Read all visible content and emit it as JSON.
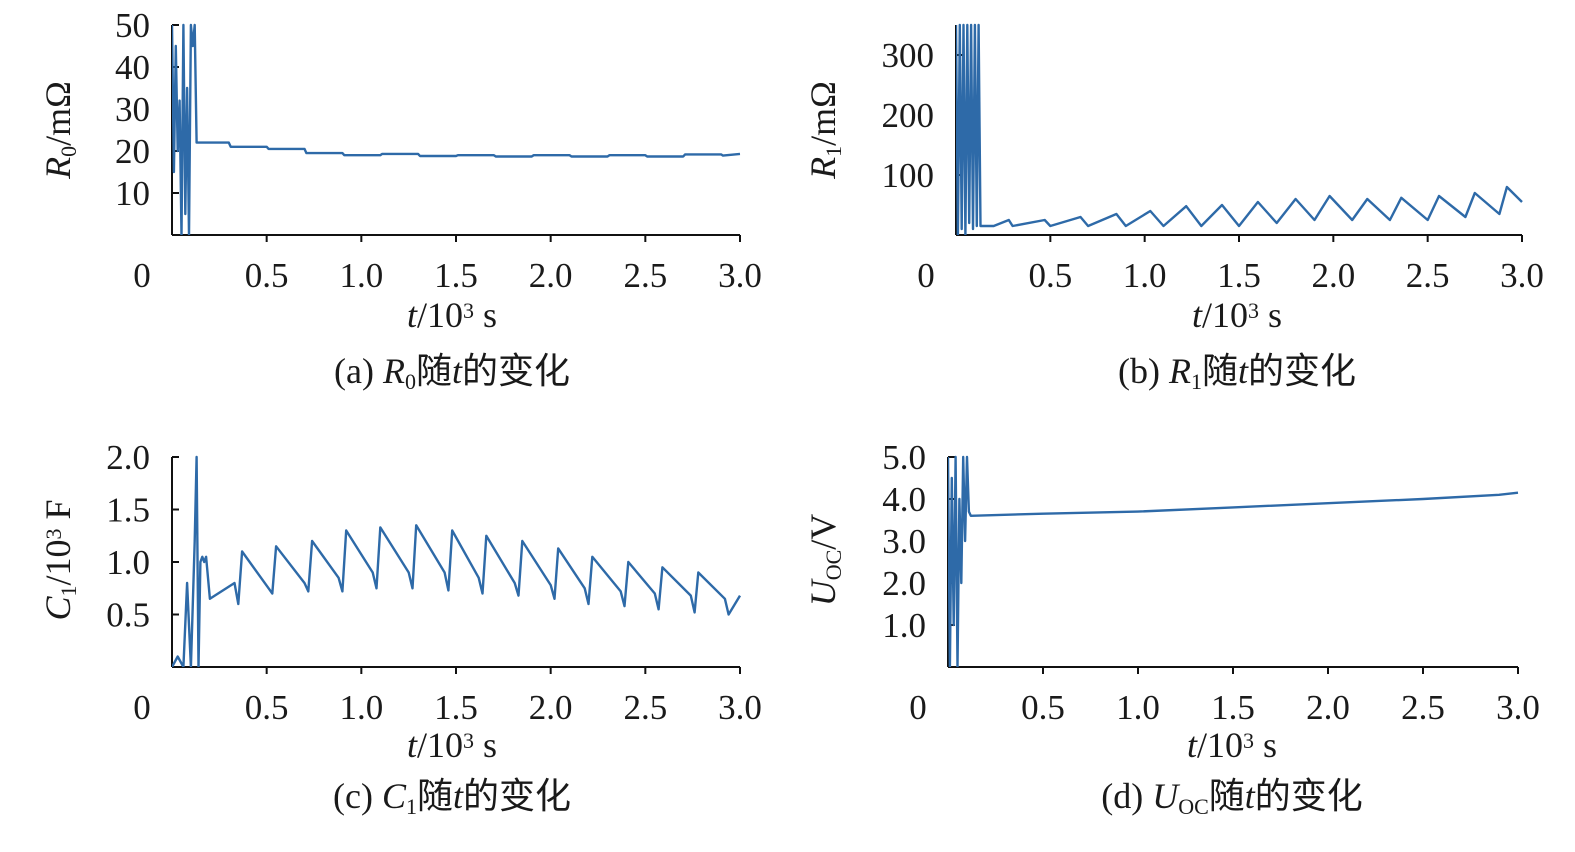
{
  "colors": {
    "series": "#2e6aa8",
    "axis": "#111111",
    "text": "#1a1a1a"
  },
  "chart_data": [
    {
      "type": "line",
      "panel": "a",
      "caption": "(a) R0随t的变化",
      "caption_parts": [
        "(a) ",
        "R",
        "0",
        "随",
        "t",
        "的变化"
      ],
      "ylabel_parts": [
        "R",
        "0",
        "/mΩ"
      ],
      "xlabel_parts": [
        "t",
        "/10",
        "3",
        " s"
      ],
      "xlim": [
        0,
        3.0
      ],
      "ylim": [
        0,
        50
      ],
      "x_ticks": [
        0,
        0.5,
        1.0,
        1.5,
        2.0,
        2.5,
        3.0
      ],
      "x_tick_labels": [
        "0",
        "0.5",
        "1.0",
        "1.5",
        "2.0",
        "2.5",
        "3.0"
      ],
      "y_ticks": [
        10,
        20,
        30,
        40,
        50
      ],
      "y_tick_labels": [
        "10",
        "20",
        "30",
        "40",
        "50"
      ],
      "series": [
        {
          "x": [
            0,
            0.01,
            0.02,
            0.03,
            0.04,
            0.05,
            0.06,
            0.07,
            0.08,
            0.09,
            0.1,
            0.11,
            0.12,
            0.13,
            0.14,
            0.15,
            0.3,
            0.31,
            0.5,
            0.51,
            0.7,
            0.71,
            0.9,
            0.91,
            1.1,
            1.11,
            1.3,
            1.31,
            1.5,
            1.51,
            1.7,
            1.71,
            1.9,
            1.91,
            2.1,
            2.11,
            2.3,
            2.31,
            2.5,
            2.51,
            2.7,
            2.71,
            2.9,
            2.91,
            3.0
          ],
          "y": [
            50,
            15,
            45,
            20,
            32,
            0,
            50,
            5,
            35,
            0,
            50,
            45,
            50,
            22,
            22,
            22,
            22,
            21,
            21,
            20.5,
            20.5,
            19.5,
            19.5,
            19,
            19,
            19.3,
            19.3,
            18.8,
            18.8,
            19,
            19,
            18.7,
            18.7,
            19,
            19,
            18.7,
            18.7,
            19,
            19,
            18.7,
            18.7,
            19.2,
            19.2,
            18.9,
            19.3
          ]
        }
      ]
    },
    {
      "type": "line",
      "panel": "b",
      "caption": "(b) R1随t的变化",
      "caption_parts": [
        "(b) ",
        "R",
        "1",
        "随",
        "t",
        "的变化"
      ],
      "ylabel_parts": [
        "R",
        "1",
        "/mΩ"
      ],
      "xlabel_parts": [
        "t",
        "/10",
        "3",
        " s"
      ],
      "xlim": [
        0,
        3.0
      ],
      "ylim": [
        0,
        350
      ],
      "x_ticks": [
        0,
        0.5,
        1.0,
        1.5,
        2.0,
        2.5,
        3.0
      ],
      "x_tick_labels": [
        "0",
        "0.5",
        "1.0",
        "1.5",
        "2.0",
        "2.5",
        "3.0"
      ],
      "y_ticks": [
        100,
        200,
        300
      ],
      "y_tick_labels": [
        "100",
        "200",
        "300"
      ],
      "series": [
        {
          "x": [
            0,
            0.01,
            0.02,
            0.03,
            0.04,
            0.05,
            0.06,
            0.07,
            0.08,
            0.09,
            0.1,
            0.11,
            0.12,
            0.13,
            0.14,
            0.2,
            0.28,
            0.3,
            0.47,
            0.5,
            0.66,
            0.7,
            0.85,
            0.9,
            1.03,
            1.1,
            1.22,
            1.3,
            1.41,
            1.5,
            1.6,
            1.7,
            1.8,
            1.9,
            1.98,
            2.1,
            2.18,
            2.3,
            2.36,
            2.5,
            2.56,
            2.7,
            2.75,
            2.88,
            2.92,
            3.0
          ],
          "y": [
            350,
            0,
            350,
            10,
            350,
            0,
            350,
            20,
            350,
            10,
            350,
            15,
            350,
            15,
            15,
            15,
            25,
            15,
            25,
            15,
            30,
            15,
            35,
            15,
            40,
            15,
            48,
            15,
            50,
            15,
            55,
            20,
            60,
            25,
            65,
            25,
            60,
            25,
            62,
            25,
            65,
            30,
            70,
            35,
            80,
            55
          ]
        }
      ]
    },
    {
      "type": "line",
      "panel": "c",
      "caption": "(c) C1随t的变化",
      "caption_parts": [
        "(c) ",
        "C",
        "1",
        "随",
        "t",
        "的变化"
      ],
      "ylabel_parts": [
        "C",
        "1",
        "/10",
        "3",
        " F"
      ],
      "xlabel_parts": [
        "t",
        "/10",
        "3",
        " s"
      ],
      "xlim": [
        0,
        3.0
      ],
      "ylim": [
        0,
        2.0
      ],
      "x_ticks": [
        0,
        0.5,
        1.0,
        1.5,
        2.0,
        2.5,
        3.0
      ],
      "x_tick_labels": [
        "0",
        "0.5",
        "1.0",
        "1.5",
        "2.0",
        "2.5",
        "3.0"
      ],
      "y_ticks": [
        0.5,
        1.0,
        1.5,
        2.0
      ],
      "y_tick_labels": [
        "0.5",
        "1.0",
        "1.5",
        "2.0"
      ],
      "series": [
        {
          "x": [
            0,
            0.03,
            0.06,
            0.08,
            0.1,
            0.12,
            0.13,
            0.14,
            0.15,
            0.16,
            0.17,
            0.18,
            0.2,
            0.2,
            0.33,
            0.35,
            0.37,
            0.37,
            0.51,
            0.53,
            0.55,
            0.55,
            0.7,
            0.72,
            0.74,
            0.74,
            0.88,
            0.9,
            0.92,
            0.92,
            1.06,
            1.08,
            1.1,
            1.1,
            1.25,
            1.27,
            1.29,
            1.29,
            1.44,
            1.46,
            1.48,
            1.48,
            1.62,
            1.64,
            1.66,
            1.66,
            1.81,
            1.83,
            1.85,
            1.85,
            2.0,
            2.02,
            2.04,
            2.04,
            2.18,
            2.2,
            2.22,
            2.22,
            2.37,
            2.39,
            2.41,
            2.41,
            2.55,
            2.57,
            2.59,
            2.59,
            2.74,
            2.76,
            2.78,
            2.78,
            2.92,
            2.94,
            3.0
          ],
          "y": [
            0,
            0.1,
            0,
            0.8,
            0,
            1.2,
            2.0,
            0,
            1.0,
            1.05,
            1.0,
            1.05,
            0.65,
            0.65,
            0.8,
            0.6,
            1.1,
            1.1,
            0.75,
            0.7,
            1.15,
            1.15,
            0.8,
            0.72,
            1.2,
            1.2,
            0.85,
            0.72,
            1.3,
            1.3,
            0.9,
            0.75,
            1.33,
            1.33,
            0.9,
            0.75,
            1.35,
            1.35,
            0.9,
            0.73,
            1.3,
            1.3,
            0.85,
            0.7,
            1.25,
            1.25,
            0.8,
            0.68,
            1.2,
            1.2,
            0.78,
            0.65,
            1.13,
            1.13,
            0.75,
            0.6,
            1.05,
            1.05,
            0.72,
            0.58,
            1.0,
            1.0,
            0.7,
            0.55,
            0.95,
            0.95,
            0.68,
            0.52,
            0.9,
            0.9,
            0.65,
            0.5,
            0.68
          ]
        }
      ]
    },
    {
      "type": "line",
      "panel": "d",
      "caption": "(d) UOC随t的变化",
      "caption_parts": [
        "(d) ",
        "U",
        "OC",
        "随",
        "t",
        "的变化"
      ],
      "ylabel_parts": [
        "U",
        "OC",
        "/V"
      ],
      "xlabel_parts": [
        "t",
        "/10",
        "3",
        " s"
      ],
      "xlim": [
        0,
        3.0
      ],
      "ylim": [
        0,
        5.0
      ],
      "x_ticks": [
        0,
        0.5,
        1.0,
        1.5,
        2.0,
        2.5,
        3.0
      ],
      "x_tick_labels": [
        "0",
        "0.5",
        "1.0",
        "1.5",
        "2.0",
        "2.5",
        "3.0"
      ],
      "y_ticks": [
        1.0,
        2.0,
        3.0,
        4.0,
        5.0
      ],
      "y_tick_labels": [
        "1.0",
        "2.0",
        "3.0",
        "4.0",
        "5.0"
      ],
      "series": [
        {
          "x": [
            0,
            0.01,
            0.02,
            0.03,
            0.04,
            0.05,
            0.06,
            0.07,
            0.08,
            0.09,
            0.1,
            0.11,
            0.12,
            0.5,
            1.0,
            1.5,
            2.0,
            2.5,
            2.9,
            3.0
          ],
          "y": [
            5.0,
            0,
            4.5,
            1.0,
            5.0,
            0,
            4.0,
            2.0,
            5.0,
            3.0,
            5.0,
            3.7,
            3.6,
            3.65,
            3.7,
            3.8,
            3.9,
            4.0,
            4.1,
            4.15
          ]
        }
      ]
    }
  ]
}
